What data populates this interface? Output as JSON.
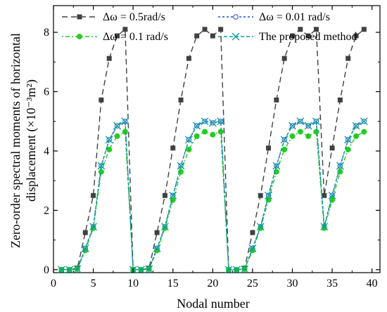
{
  "chart_data": {
    "type": "line",
    "title": "",
    "xlabel": "Nodal number",
    "ylabel_line1": "Zero-order spectral moments of horizontal",
    "ylabel_line2": "displacement  (×10⁻³m²)",
    "xlim": [
      0,
      41
    ],
    "ylim": [
      -0.1,
      8.9
    ],
    "xticks": [
      0,
      5,
      10,
      15,
      20,
      25,
      30,
      35,
      40
    ],
    "yticks": [
      0,
      2,
      4,
      6,
      8
    ],
    "grid": false,
    "legend_position": "top",
    "x": [
      1,
      2,
      3,
      4,
      5,
      6,
      7,
      8,
      9,
      10,
      11,
      12,
      13,
      14,
      15,
      16,
      17,
      18,
      19,
      20,
      21,
      22,
      23,
      24,
      25,
      26,
      27,
      28,
      29,
      30,
      31,
      32,
      33,
      34,
      35,
      36,
      37,
      38,
      39
    ],
    "series": [
      {
        "name": "Δω = 0.5rad/s",
        "color": "#404040",
        "dash": "8,5",
        "marker": "square",
        "values": [
          0.0,
          0.0,
          0.05,
          1.25,
          2.5,
          5.72,
          7.12,
          7.88,
          8.1,
          0.0,
          0.0,
          0.05,
          1.25,
          2.5,
          4.1,
          5.72,
          7.12,
          7.88,
          8.1,
          7.88,
          8.1,
          0.0,
          0.0,
          0.05,
          1.25,
          2.5,
          4.1,
          5.72,
          7.12,
          7.88,
          8.1,
          7.88,
          8.1,
          2.5,
          4.1,
          5.72,
          7.12,
          7.88,
          8.1
        ]
      },
      {
        "name": "Δω = 0.01 rad/s",
        "color": "#1f4fd6",
        "dash": "3,3",
        "marker": "open-circle",
        "values": [
          0.0,
          0.0,
          0.02,
          0.72,
          1.45,
          3.5,
          4.38,
          4.85,
          5.0,
          0.0,
          0.0,
          0.02,
          0.72,
          1.45,
          2.5,
          3.5,
          4.38,
          4.85,
          5.0,
          4.95,
          5.0,
          0.0,
          0.0,
          0.02,
          0.72,
          1.45,
          2.5,
          3.5,
          4.38,
          4.85,
          5.0,
          4.85,
          5.0,
          1.45,
          2.5,
          3.5,
          4.38,
          4.85,
          5.0
        ]
      },
      {
        "name": "Δω = 0.1 rad/s",
        "color": "#22cc22",
        "dash": "2,3,6,3",
        "marker": "filled-circle",
        "values": [
          0.0,
          0.0,
          0.02,
          0.65,
          1.4,
          3.3,
          4.05,
          4.5,
          4.65,
          0.0,
          0.0,
          0.02,
          0.65,
          1.4,
          2.35,
          3.3,
          4.05,
          4.5,
          4.65,
          4.55,
          4.65,
          0.0,
          0.0,
          0.02,
          0.65,
          1.4,
          2.35,
          3.3,
          4.05,
          4.5,
          4.65,
          4.5,
          4.65,
          1.4,
          2.35,
          3.3,
          4.05,
          4.5,
          4.65
        ]
      },
      {
        "name": "The proposed method",
        "color": "#0a9a9a",
        "dash": "5,3",
        "marker": "x",
        "values": [
          0.0,
          0.0,
          0.02,
          0.72,
          1.45,
          3.5,
          4.38,
          4.85,
          5.0,
          0.0,
          0.0,
          0.02,
          0.72,
          1.45,
          2.5,
          3.5,
          4.38,
          4.85,
          5.0,
          4.95,
          5.0,
          0.0,
          0.0,
          0.02,
          0.72,
          1.45,
          2.5,
          3.5,
          4.38,
          4.85,
          5.0,
          4.85,
          5.0,
          1.45,
          2.5,
          3.5,
          4.38,
          4.85,
          5.0
        ]
      }
    ]
  }
}
